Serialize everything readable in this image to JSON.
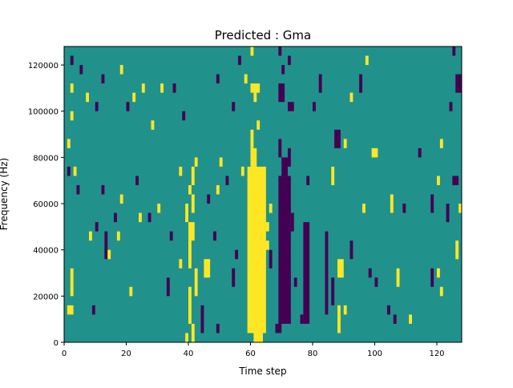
{
  "chart_data": {
    "type": "heatmap",
    "title": "Predicted : Gma",
    "xlabel": "Time step",
    "ylabel": "Frequency (Hz)",
    "xlim": [
      0,
      128
    ],
    "ylim": [
      0,
      128000
    ],
    "row_height_hz": 4000,
    "xticks": [
      0,
      20,
      40,
      60,
      80,
      100,
      120
    ],
    "yticks": [
      0,
      20000,
      40000,
      60000,
      80000,
      100000,
      120000
    ],
    "colormap": {
      "0": "#440154",
      "1": "#21918c",
      "2": "#fde725"
    },
    "background_value": 1,
    "cells_note_format": "[t_start, t_end, row_start, row_end, value]",
    "segments": [
      [
        59,
        64,
        1,
        18,
        2
      ],
      [
        61,
        63,
        0,
        0,
        2
      ],
      [
        60,
        61,
        19,
        20,
        2
      ],
      [
        60,
        60,
        21,
        22,
        2
      ],
      [
        62,
        62,
        23,
        23,
        2
      ],
      [
        60,
        62,
        27,
        27,
        2
      ],
      [
        61,
        61,
        26,
        26,
        2
      ],
      [
        57,
        57,
        18,
        18,
        2
      ],
      [
        64,
        65,
        10,
        10,
        2
      ],
      [
        64,
        65,
        12,
        12,
        2
      ],
      [
        69,
        72,
        2,
        17,
        0
      ],
      [
        70,
        71,
        18,
        19,
        0
      ],
      [
        68,
        69,
        1,
        1,
        0
      ],
      [
        69,
        69,
        20,
        21,
        0
      ],
      [
        72,
        72,
        19,
        20,
        0
      ],
      [
        69,
        70,
        26,
        27,
        0
      ],
      [
        72,
        73,
        25,
        25,
        0
      ],
      [
        70,
        70,
        29,
        29,
        0
      ],
      [
        72,
        72,
        30,
        30,
        0
      ],
      [
        69,
        69,
        31,
        31,
        0
      ],
      [
        40,
        40,
        2,
        5,
        2
      ],
      [
        41,
        41,
        0,
        1,
        2
      ],
      [
        39,
        39,
        0,
        0,
        2
      ],
      [
        42,
        42,
        5,
        7,
        2
      ],
      [
        40,
        40,
        8,
        10,
        2
      ],
      [
        40,
        41,
        11,
        12,
        2
      ],
      [
        41,
        41,
        14,
        15,
        2
      ],
      [
        40,
        40,
        16,
        16,
        2
      ],
      [
        41,
        41,
        17,
        18,
        2
      ],
      [
        42,
        42,
        19,
        19,
        2
      ],
      [
        1,
        2,
        3,
        3,
        2
      ],
      [
        2,
        2,
        5,
        7,
        2
      ],
      [
        1,
        1,
        21,
        21,
        2
      ],
      [
        2,
        2,
        24,
        24,
        2
      ],
      [
        2,
        2,
        27,
        27,
        2
      ],
      [
        3,
        3,
        18,
        18,
        2
      ],
      [
        2,
        2,
        30,
        30,
        0
      ],
      [
        1,
        1,
        18,
        18,
        0
      ],
      [
        4,
        4,
        16,
        16,
        0
      ],
      [
        9,
        9,
        3,
        3,
        0
      ],
      [
        8,
        8,
        11,
        11,
        2
      ],
      [
        10,
        10,
        12,
        12,
        0
      ],
      [
        13,
        13,
        9,
        11,
        0
      ],
      [
        14,
        14,
        9,
        9,
        2
      ],
      [
        12,
        12,
        16,
        16,
        0
      ],
      [
        17,
        17,
        11,
        11,
        2
      ],
      [
        16,
        16,
        13,
        13,
        0
      ],
      [
        18,
        18,
        15,
        15,
        2
      ],
      [
        21,
        21,
        5,
        5,
        2
      ],
      [
        24,
        24,
        13,
        13,
        2
      ],
      [
        5,
        5,
        29,
        29,
        0
      ],
      [
        7,
        7,
        26,
        26,
        2
      ],
      [
        10,
        10,
        25,
        25,
        0
      ],
      [
        12,
        12,
        28,
        28,
        0
      ],
      [
        18,
        18,
        29,
        29,
        2
      ],
      [
        20,
        20,
        25,
        25,
        0
      ],
      [
        22,
        22,
        26,
        26,
        2
      ],
      [
        25,
        25,
        27,
        27,
        2
      ],
      [
        28,
        28,
        23,
        23,
        2
      ],
      [
        31,
        31,
        27,
        27,
        2
      ],
      [
        23,
        23,
        17,
        17,
        0
      ],
      [
        27,
        27,
        13,
        13,
        0
      ],
      [
        30,
        30,
        14,
        14,
        2
      ],
      [
        33,
        33,
        5,
        6,
        0
      ],
      [
        34,
        34,
        11,
        11,
        0
      ],
      [
        37,
        37,
        18,
        18,
        2
      ],
      [
        37,
        37,
        8,
        8,
        2
      ],
      [
        38,
        38,
        24,
        24,
        0
      ],
      [
        35,
        35,
        27,
        27,
        0
      ],
      [
        39,
        39,
        13,
        14,
        2
      ],
      [
        44,
        44,
        1,
        3,
        0
      ],
      [
        45,
        46,
        7,
        8,
        2
      ],
      [
        46,
        46,
        15,
        15,
        0
      ],
      [
        48,
        48,
        11,
        11,
        0
      ],
      [
        49,
        49,
        1,
        1,
        0
      ],
      [
        49,
        49,
        16,
        16,
        2
      ],
      [
        50,
        50,
        19,
        19,
        2
      ],
      [
        52,
        52,
        17,
        17,
        0
      ],
      [
        54,
        54,
        6,
        7,
        0
      ],
      [
        55,
        55,
        9,
        9,
        0
      ],
      [
        49,
        49,
        28,
        28,
        0
      ],
      [
        54,
        54,
        25,
        25,
        0
      ],
      [
        58,
        58,
        28,
        28,
        2
      ],
      [
        56,
        56,
        30,
        30,
        0
      ],
      [
        60,
        60,
        31,
        31,
        2
      ],
      [
        66,
        66,
        14,
        14,
        2
      ],
      [
        66,
        66,
        8,
        9,
        0
      ],
      [
        73,
        73,
        12,
        13,
        0
      ],
      [
        74,
        74,
        6,
        6,
        0
      ],
      [
        76,
        76,
        2,
        2,
        0
      ],
      [
        77,
        78,
        2,
        12,
        0
      ],
      [
        78,
        78,
        17,
        17,
        0
      ],
      [
        80,
        80,
        25,
        25,
        0
      ],
      [
        82,
        82,
        27,
        28,
        0
      ],
      [
        84,
        84,
        3,
        11,
        0
      ],
      [
        86,
        86,
        4,
        6,
        0
      ],
      [
        86,
        86,
        17,
        18,
        2
      ],
      [
        88,
        88,
        1,
        3,
        2
      ],
      [
        88,
        89,
        7,
        8,
        2
      ],
      [
        90,
        90,
        3,
        3,
        2
      ],
      [
        87,
        88,
        21,
        22,
        0
      ],
      [
        90,
        90,
        21,
        21,
        2
      ],
      [
        92,
        92,
        26,
        26,
        2
      ],
      [
        95,
        95,
        27,
        28,
        0
      ],
      [
        97,
        97,
        30,
        30,
        2
      ],
      [
        98,
        98,
        7,
        7,
        0
      ],
      [
        100,
        100,
        6,
        6,
        0
      ],
      [
        99,
        100,
        20,
        20,
        2
      ],
      [
        105,
        105,
        14,
        15,
        2
      ],
      [
        107,
        107,
        6,
        7,
        2
      ],
      [
        104,
        104,
        3,
        3,
        0
      ],
      [
        106,
        106,
        2,
        2,
        0
      ],
      [
        109,
        109,
        14,
        14,
        0
      ],
      [
        111,
        111,
        2,
        2,
        2
      ],
      [
        114,
        114,
        20,
        20,
        0
      ],
      [
        118,
        118,
        6,
        7,
        0
      ],
      [
        120,
        120,
        7,
        7,
        2
      ],
      [
        121,
        121,
        5,
        5,
        2
      ],
      [
        123,
        123,
        13,
        14,
        0
      ],
      [
        125,
        126,
        17,
        17,
        0
      ],
      [
        118,
        118,
        14,
        15,
        0
      ],
      [
        120,
        120,
        17,
        17,
        2
      ],
      [
        121,
        121,
        21,
        21,
        2
      ],
      [
        124,
        124,
        25,
        25,
        0
      ],
      [
        126,
        127,
        27,
        28,
        0
      ],
      [
        125,
        125,
        31,
        31,
        0
      ],
      [
        127,
        127,
        14,
        14,
        2
      ],
      [
        126,
        126,
        9,
        10,
        2
      ],
      [
        96,
        96,
        14,
        14,
        2
      ],
      [
        92,
        92,
        9,
        10,
        0
      ]
    ]
  }
}
